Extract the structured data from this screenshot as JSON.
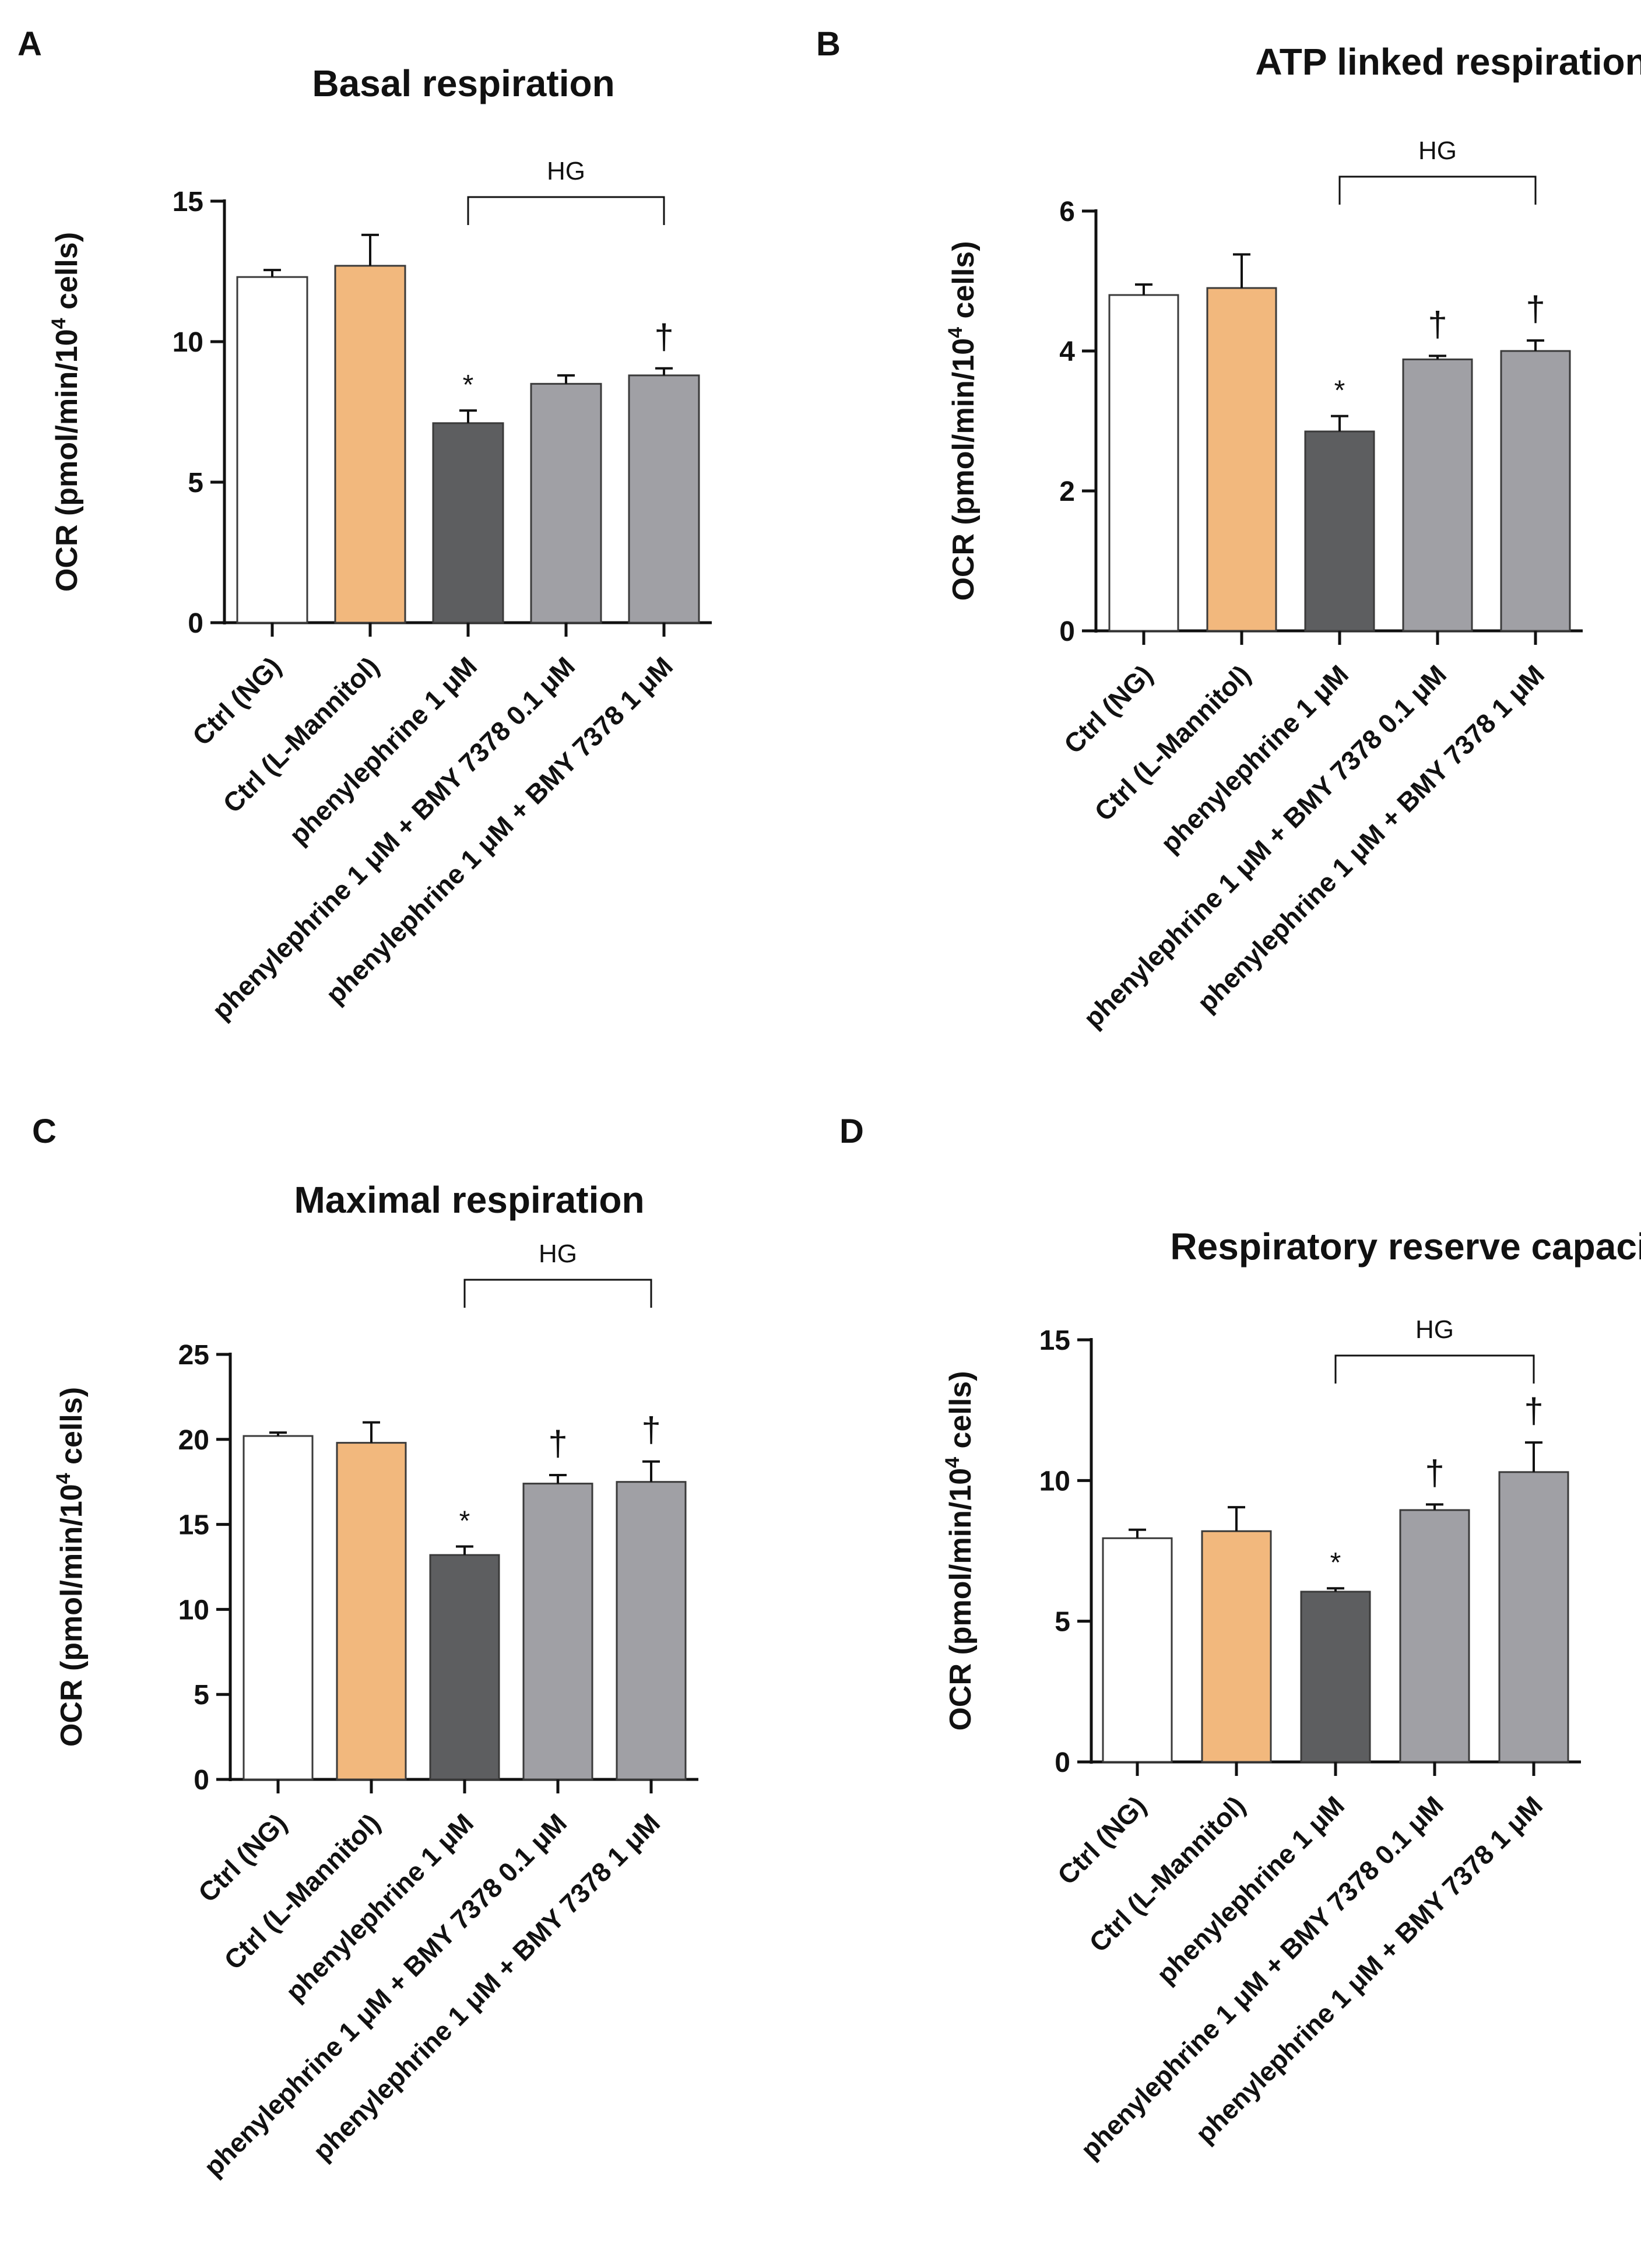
{
  "figure": {
    "colors": {
      "axis": "#111111",
      "bar_stroke": "#3a3a3a",
      "ctrl_ng": "#ffffff",
      "ctrl_mannitol": "#f2b87d",
      "phenylephrine": "#5d5e60",
      "bmy": "#a0a0a5"
    }
  },
  "chart_data": [
    {
      "panel": "A",
      "type": "bar",
      "title": "Basal respiration",
      "ylabel": "OCR (pmol/min/10^4 cells)",
      "ylabel_prefix": "OCR (pmol/min/10",
      "ylabel_sup": "4",
      "ylabel_suffix": " cells)",
      "ylim": [
        0,
        15
      ],
      "yticks": [
        0,
        5,
        10,
        15
      ],
      "bracket_label": "HG",
      "categories": [
        "Ctrl (NG)",
        "Ctrl (L-Mannitol)",
        "phenylephrine 1 μM",
        "phenylephrine 1 μM + BMY 7378 0.1 μM",
        "phenylephrine 1 μM + BMY 7378 1 μM"
      ],
      "values": [
        12.3,
        12.7,
        7.1,
        8.5,
        8.8
      ],
      "errors": [
        0.25,
        1.1,
        0.45,
        0.3,
        0.25
      ],
      "markers": [
        "",
        "",
        "*",
        "",
        "†"
      ]
    },
    {
      "panel": "B",
      "type": "bar",
      "title": "ATP linked respiration",
      "ylabel": "OCR (pmol/min/10^4 cells)",
      "ylabel_prefix": "OCR (pmol/min/10",
      "ylabel_sup": "4",
      "ylabel_suffix": " cells)",
      "ylim": [
        0,
        6
      ],
      "yticks": [
        0,
        2,
        4,
        6
      ],
      "bracket_label": "HG",
      "categories": [
        "Ctrl (NG)",
        "Ctrl (L-Mannitol)",
        "phenylephrine 1 μM",
        "phenylephrine 1 μM + BMY 7378 0.1 μM",
        "phenylephrine 1 μM + BMY 7378 1 μM"
      ],
      "values": [
        4.8,
        4.9,
        2.85,
        3.88,
        4.0
      ],
      "errors": [
        0.15,
        0.48,
        0.22,
        0.05,
        0.15
      ],
      "markers": [
        "",
        "",
        "*",
        "†",
        "†"
      ]
    },
    {
      "panel": "C",
      "type": "bar",
      "title": "Maximal respiration",
      "ylabel": "OCR (pmol/min/10^4 cells)",
      "ylabel_prefix": "OCR (pmol/min/10",
      "ylabel_sup": "4",
      "ylabel_suffix": " cells)",
      "ylim": [
        0,
        25
      ],
      "yticks": [
        0,
        5,
        10,
        15,
        20,
        25
      ],
      "bracket_label": "HG",
      "categories": [
        "Ctrl (NG)",
        "Ctrl (L-Mannitol)",
        "phenylephrine 1 μM",
        "phenylephrine 1 μM + BMY 7378 0.1 μM",
        "phenylephrine 1 μM + BMY 7378 1 μM"
      ],
      "values": [
        20.2,
        19.8,
        13.2,
        17.4,
        17.5
      ],
      "errors": [
        0.2,
        1.2,
        0.5,
        0.5,
        1.2
      ],
      "markers": [
        "",
        "",
        "*",
        "†",
        "†"
      ]
    },
    {
      "panel": "D",
      "type": "bar",
      "title": "Respiratory reserve capacity",
      "ylabel": "OCR (pmol/min/10^4 cells)",
      "ylabel_prefix": "OCR (pmol/min/10",
      "ylabel_sup": "4",
      "ylabel_suffix": " cells)",
      "ylim": [
        0,
        15
      ],
      "yticks": [
        0,
        5,
        10,
        15
      ],
      "bracket_label": "HG",
      "categories": [
        "Ctrl (NG)",
        "Ctrl (L-Mannitol)",
        "phenylephrine 1 μM",
        "phenylephrine 1 μM + BMY 7378 0.1 μM",
        "phenylephrine 1 μM + BMY 7378 1 μM"
      ],
      "values": [
        7.95,
        8.2,
        6.05,
        8.95,
        10.3
      ],
      "errors": [
        0.3,
        0.85,
        0.12,
        0.2,
        1.05
      ],
      "markers": [
        "",
        "",
        "*",
        "†",
        "†"
      ]
    }
  ]
}
